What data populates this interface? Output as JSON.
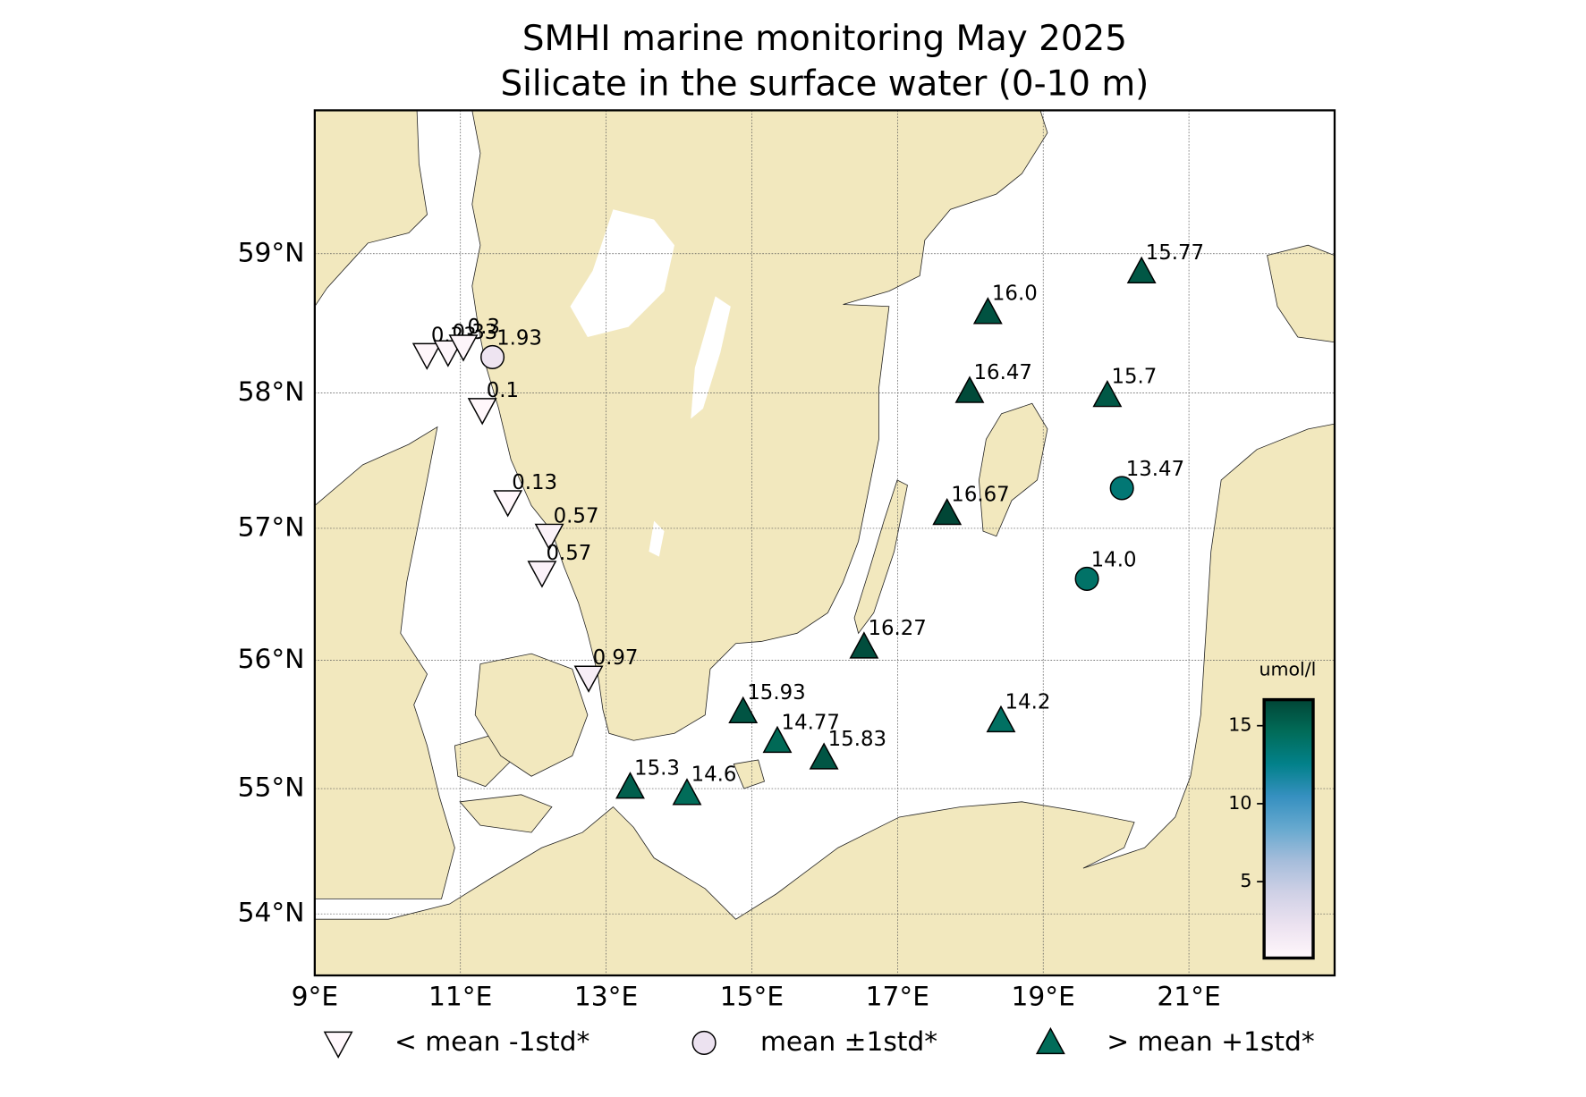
{
  "map": {
    "title": "SMHI marine monitoring May 2025",
    "subtitle": "Silicate in the surface water (0-10 m)",
    "xlim": [
      9,
      23
    ],
    "ylim": [
      53.5,
      60
    ],
    "xticks": [
      {
        "value": 9,
        "label": "9°E"
      },
      {
        "value": 11,
        "label": "11°E"
      },
      {
        "value": 13,
        "label": "13°E"
      },
      {
        "value": 15,
        "label": "15°E"
      },
      {
        "value": 17,
        "label": "17°E"
      },
      {
        "value": 19,
        "label": "19°E"
      },
      {
        "value": 21,
        "label": "21°E"
      }
    ],
    "yticks": [
      {
        "value": 54,
        "label": "54°N"
      },
      {
        "value": 55,
        "label": "55°N"
      },
      {
        "value": 56,
        "label": "56°N"
      },
      {
        "value": 57,
        "label": "57°N"
      },
      {
        "value": 58,
        "label": "58°N"
      },
      {
        "value": 59,
        "label": "59°N"
      }
    ],
    "grid": true,
    "land_color": "#f2e8be",
    "colorbar": {
      "label": "umol/l",
      "lim": [
        0.1,
        16.67
      ],
      "ticks": [
        5,
        10,
        15
      ],
      "colors": [
        "#fff7fb",
        "#ece2f0",
        "#d0d1e6",
        "#a6bddb",
        "#67a9cf",
        "#3690c0",
        "#02818a",
        "#016c59",
        "#014636"
      ]
    },
    "legend": [
      {
        "label": "< mean -1std*",
        "marker": "triangle-down",
        "color": "#fff7fb"
      },
      {
        "label": "mean ±1std*",
        "marker": "circle",
        "color": "#ece2f0"
      },
      {
        "label": "> mean +1std*",
        "marker": "triangle-up",
        "color": "#016c59"
      }
    ],
    "stations": [
      {
        "lon": 10.54,
        "lat": 58.28,
        "value": 0.23,
        "marker": "triangle-down"
      },
      {
        "lon": 10.83,
        "lat": 58.3,
        "value": 0.33,
        "marker": "triangle-down"
      },
      {
        "lon": 11.04,
        "lat": 58.34,
        "value": 0.3,
        "marker": "triangle-down"
      },
      {
        "lon": 11.3,
        "lat": 57.88,
        "value": 0.1,
        "marker": "triangle-down"
      },
      {
        "lon": 11.44,
        "lat": 58.26,
        "value": 1.93,
        "marker": "circle"
      },
      {
        "lon": 11.65,
        "lat": 57.2,
        "value": 0.13,
        "marker": "triangle-down"
      },
      {
        "lon": 12.22,
        "lat": 56.95,
        "value": 0.57,
        "marker": "triangle-down"
      },
      {
        "lon": 12.12,
        "lat": 56.67,
        "value": 0.57,
        "marker": "triangle-down"
      },
      {
        "lon": 12.76,
        "lat": 55.87,
        "value": 0.97,
        "marker": "triangle-down"
      },
      {
        "lon": 20.35,
        "lat": 58.87,
        "value": 15.77,
        "marker": "triangle-up"
      },
      {
        "lon": 18.24,
        "lat": 58.58,
        "value": 16,
        "value_label": "16.0",
        "marker": "triangle-up"
      },
      {
        "lon": 17.99,
        "lat": 58.01,
        "value": 16.47,
        "marker": "triangle-up"
      },
      {
        "lon": 19.88,
        "lat": 57.98,
        "value": 15.7,
        "marker": "triangle-up"
      },
      {
        "lon": 17.68,
        "lat": 57.11,
        "value": 16.67,
        "marker": "triangle-up"
      },
      {
        "lon": 16.54,
        "lat": 56.1,
        "value": 16.27,
        "marker": "triangle-up"
      },
      {
        "lon": 14.88,
        "lat": 55.6,
        "value": 15.93,
        "marker": "triangle-up"
      },
      {
        "lon": 15.35,
        "lat": 55.37,
        "value": 14.77,
        "marker": "triangle-up"
      },
      {
        "lon": 15.99,
        "lat": 55.24,
        "value": 15.83,
        "marker": "triangle-up"
      },
      {
        "lon": 18.42,
        "lat": 55.53,
        "value": 14.2,
        "marker": "triangle-up"
      },
      {
        "lon": 13.33,
        "lat": 55.01,
        "value": 15.3,
        "marker": "triangle-up"
      },
      {
        "lon": 14.11,
        "lat": 54.96,
        "value": 14.6,
        "marker": "triangle-up"
      },
      {
        "lon": 20.08,
        "lat": 57.3,
        "value": 13.47,
        "marker": "circle"
      },
      {
        "lon": 19.6,
        "lat": 56.62,
        "value": 14,
        "value_label": "14.0",
        "marker": "circle"
      }
    ]
  }
}
